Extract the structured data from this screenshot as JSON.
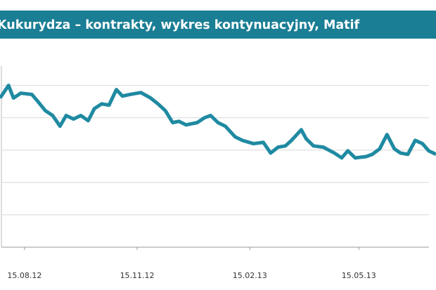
{
  "chart_data": {
    "type": "line",
    "title": "Kukurydza – kontrakty, wykres kontynuacyjny, Matif",
    "x": [
      -20,
      -13,
      -9,
      -3,
      6,
      11,
      17,
      23,
      29,
      34,
      40,
      46,
      52,
      57,
      63,
      69,
      75,
      80,
      86,
      95,
      103,
      109,
      115,
      121,
      126,
      132,
      141,
      147,
      152,
      158,
      164,
      172,
      178,
      187,
      195,
      201,
      207,
      213,
      218,
      226,
      230,
      236,
      244,
      253,
      259,
      264,
      270,
      279,
      284,
      290,
      296,
      302,
      307,
      313,
      319,
      325,
      330,
      336
    ],
    "series": [
      {
        "color": "#1f8aa2",
        "values": [
          4.61,
          5.0,
          4.61,
          4.76,
          4.72,
          4.5,
          4.22,
          4.07,
          3.74,
          4.07,
          3.96,
          4.07,
          3.91,
          4.28,
          4.43,
          4.39,
          4.87,
          4.67,
          4.72,
          4.78,
          4.61,
          4.43,
          4.22,
          3.85,
          3.89,
          3.78,
          3.85,
          4.0,
          4.07,
          3.85,
          3.74,
          3.41,
          3.3,
          3.2,
          3.24,
          2.91,
          3.09,
          3.13,
          3.3,
          3.63,
          3.35,
          3.13,
          3.09,
          2.91,
          2.76,
          2.98,
          2.76,
          2.8,
          2.87,
          3.04,
          3.48,
          3.04,
          2.91,
          2.87,
          3.3,
          3.2,
          2.98,
          2.87
        ]
      }
    ],
    "xlim": [
      -20,
      336
    ],
    "xticks": [
      {
        "value": 0,
        "label": "15.08.12"
      },
      {
        "value": 92,
        "label": "15.11.12"
      },
      {
        "value": 184,
        "label": "15.02.13"
      },
      {
        "value": 273,
        "label": "15.05.13"
      }
    ],
    "ylim": [
      0,
      5.6
    ],
    "yticks": [
      0,
      1,
      2,
      3,
      4,
      5
    ],
    "grid": true
  }
}
